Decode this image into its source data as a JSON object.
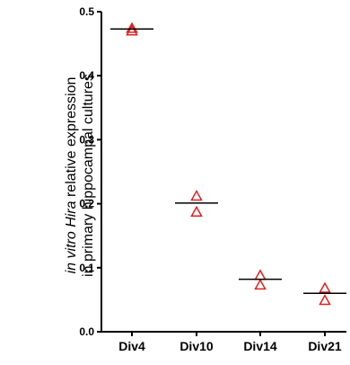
{
  "chart_data": {
    "type": "scatter",
    "categories": [
      "Div4",
      "Div10",
      "Div14",
      "Div21"
    ],
    "series": [
      {
        "values": [
          [
            0.47,
            0.474
          ],
          [
            0.187,
            0.212
          ],
          [
            0.073,
            0.088
          ],
          [
            0.049,
            0.068
          ]
        ],
        "marker": "open-triangle",
        "color": "#e02020"
      },
      {
        "values": [
          0.473,
          0.201,
          0.082,
          0.06
        ],
        "marker": "horizontal-line",
        "color": "#000000"
      }
    ],
    "ylabel_lines": [
      {
        "italic": "in vitro Hira",
        "normal": " relative expression"
      },
      {
        "italic": "",
        "normal": "in primary hippocampal cultures"
      }
    ],
    "ylim": [
      0,
      0.5
    ],
    "yticks": [
      "0.0",
      "0.1",
      "0.2",
      "0.3",
      "0.4",
      "0.5"
    ],
    "grid": false
  }
}
